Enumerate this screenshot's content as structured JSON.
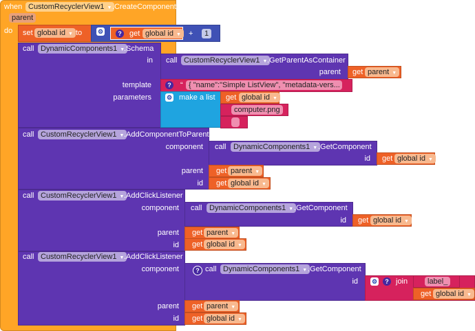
{
  "event": {
    "when": "when",
    "component": "CustomRecyclerView1",
    "method": ".CreateComponent",
    "param": "parent",
    "do": "do"
  },
  "set": {
    "label": "set",
    "var": "global id",
    "to": "to"
  },
  "math": {
    "get": "get",
    "var": "global id",
    "op": "+",
    "num": "1"
  },
  "schema": {
    "call": "call",
    "component": "DynamicComponents1",
    "method": ".Schema",
    "in": "in",
    "template": "template",
    "parameters": "parameters"
  },
  "gpac": {
    "call": "call",
    "component": "CustomRecyclerView1",
    "method": ".GetParentAsContainer",
    "parent": "parent",
    "get": "get",
    "var": "parent"
  },
  "template_text": "{    \"name\":\"Simple ListView\",    \"metadata-vers...",
  "make_list": {
    "label": "make a list",
    "get": "get",
    "var": "global id",
    "item2": "computer.png",
    "item3": ""
  },
  "add_parent": {
    "call": "call",
    "component": "CustomRecyclerView1",
    "method": ".AddComponentToParent",
    "component_label": "component",
    "parent": "parent",
    "id": "id",
    "gc": {
      "call": "call",
      "component": "DynamicComponents1",
      "method": ".GetComponent",
      "id": "id"
    },
    "get": "get",
    "var_parent": "parent",
    "var_id": "global id"
  },
  "click1": {
    "call": "call",
    "component": "CustomRecyclerView1",
    "method": ".AddClickListener",
    "component_label": "component",
    "parent": "parent",
    "id": "id",
    "gc": {
      "call": "call",
      "component": "DynamicComponents1",
      "method": ".GetComponent",
      "id": "id"
    },
    "get": "get",
    "var_parent": "parent",
    "var_id": "global id"
  },
  "click2": {
    "call": "call",
    "component": "CustomRecyclerView1",
    "method": ".AddClickListener",
    "component_label": "component",
    "parent": "parent",
    "id": "id",
    "gc": {
      "call": "call",
      "component": "DynamicComponents1",
      "method": ".GetComponent",
      "id": "id"
    },
    "join": "join",
    "text1": "label_",
    "get": "get",
    "var_parent": "parent",
    "var_id": "global id"
  },
  "quote": "“"
}
